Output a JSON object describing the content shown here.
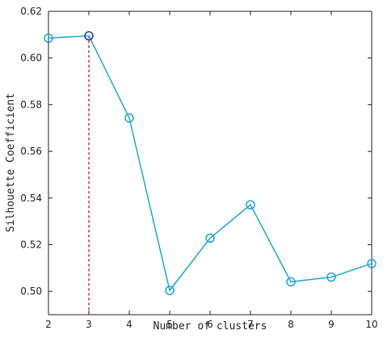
{
  "chart_data": {
    "type": "line",
    "title": "",
    "xlabel": "Number of clusters",
    "ylabel": "Silhouette Coefficient",
    "x": [
      2,
      3,
      4,
      5,
      6,
      7,
      8,
      9,
      10
    ],
    "series": [
      {
        "values": [
          0.6085,
          0.6095,
          0.5743,
          0.5004,
          0.5228,
          0.5371,
          0.5041,
          0.5061,
          0.5119
        ],
        "color": "#1ba6d8",
        "marker": "open-circle"
      }
    ],
    "highlight": {
      "x": 3,
      "y": 0.6095,
      "marker_color": "#1f2fa0",
      "line_color": "#e02020",
      "line_style": "dotted-vertical"
    },
    "xlim": [
      2,
      10
    ],
    "ylim": [
      0.49,
      0.62
    ],
    "xticks": [
      "2",
      "3",
      "4",
      "5",
      "6",
      "7",
      "8",
      "9",
      "10"
    ],
    "yticks": [
      "0.50",
      "0.52",
      "0.54",
      "0.56",
      "0.58",
      "0.60",
      "0.62"
    ],
    "grid": false,
    "legend": "none"
  }
}
